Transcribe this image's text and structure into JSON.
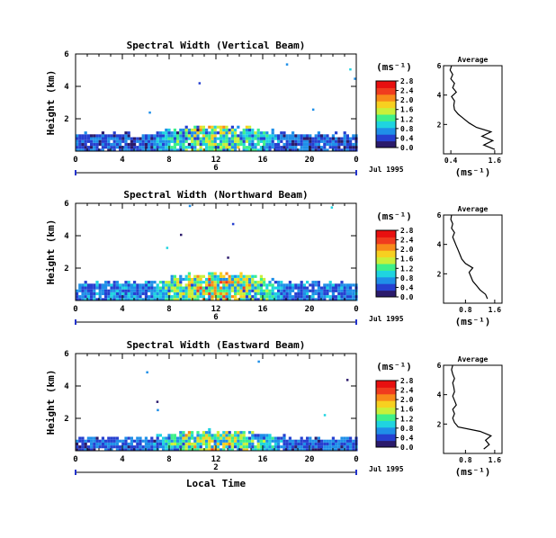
{
  "chart_data": [
    {
      "type": "heatmap",
      "title": "Spectral Width (Vertical Beam)",
      "ylabel": "Height (km)",
      "x_ticks": [
        "0",
        "4",
        "8",
        "12",
        "16",
        "20",
        "0"
      ],
      "y_ticks": [
        "6",
        "4",
        "2"
      ],
      "xlim": [
        0,
        24
      ],
      "ylim": [
        0,
        6
      ],
      "day_label": "6",
      "date_label": "Jul 1995",
      "colorbar": {
        "unit": "(ms⁻¹)",
        "ticks": [
          "2.8",
          "2.4",
          "2.0",
          "1.6",
          "1.2",
          "0.8",
          "0.4",
          "0.0"
        ],
        "range": [
          0.0,
          2.8
        ]
      },
      "echo_layers": [
        {
          "top_km": 1.5,
          "bottom_km": 0.0,
          "mean_width": 0.8
        }
      ],
      "average_profile": {
        "title": "Average",
        "xlabel": "(ms⁻¹)",
        "x_ticks": [
          "0.4",
          "1.6"
        ],
        "xlim": [
          0.2,
          1.8
        ],
        "y_ticks": [
          "6",
          "4",
          "2"
        ],
        "ylim": [
          0,
          6
        ],
        "height_km": [
          0.3,
          0.6,
          0.9,
          1.2,
          1.5,
          1.8,
          2.1,
          2.4,
          2.7,
          3.0,
          3.3,
          3.6,
          3.9,
          4.2,
          4.5,
          4.8,
          5.1,
          5.4,
          5.7,
          6.0
        ],
        "width": [
          1.6,
          1.3,
          1.55,
          1.25,
          1.5,
          1.1,
          0.9,
          0.75,
          0.6,
          0.5,
          0.48,
          0.5,
          0.42,
          0.55,
          0.45,
          0.5,
          0.4,
          0.45,
          0.38,
          0.42
        ]
      }
    },
    {
      "type": "heatmap",
      "title": "Spectral Width (Northward Beam)",
      "ylabel": "Height (km)",
      "x_ticks": [
        "0",
        "4",
        "8",
        "12",
        "16",
        "20",
        "0"
      ],
      "y_ticks": [
        "6",
        "4",
        "2"
      ],
      "xlim": [
        0,
        24
      ],
      "ylim": [
        0,
        6
      ],
      "day_label": "6",
      "date_label": "Jul 1995",
      "colorbar": {
        "unit": "(ms⁻¹)",
        "ticks": [
          "2.8",
          "2.4",
          "2.0",
          "1.6",
          "1.2",
          "0.8",
          "0.4",
          "0.0"
        ],
        "range": [
          0.0,
          2.8
        ]
      },
      "echo_layers": [
        {
          "top_km": 1.6,
          "bottom_km": 0.0,
          "mean_width": 1.0
        }
      ],
      "average_profile": {
        "title": "Average",
        "xlabel": "(ms⁻¹)",
        "x_ticks": [
          "0.8",
          "1.6"
        ],
        "xlim": [
          0.2,
          1.8
        ],
        "y_ticks": [
          "6",
          "4",
          "2"
        ],
        "ylim": [
          0,
          6
        ],
        "height_km": [
          0.3,
          0.6,
          0.9,
          1.2,
          1.5,
          1.8,
          2.1,
          2.4,
          2.7,
          3.0,
          3.3,
          3.6,
          3.9,
          4.2,
          4.5,
          4.8,
          5.1,
          5.4,
          5.7,
          6.0
        ],
        "width": [
          1.4,
          1.35,
          1.2,
          1.1,
          1.0,
          0.95,
          0.9,
          1.0,
          0.8,
          0.7,
          0.65,
          0.6,
          0.55,
          0.5,
          0.45,
          0.5,
          0.42,
          0.45,
          0.4,
          0.42
        ]
      }
    },
    {
      "type": "heatmap",
      "title": "Spectral Width (Eastward Beam)",
      "ylabel": "Height (km)",
      "x_ticks": [
        "0",
        "4",
        "8",
        "12",
        "16",
        "20",
        "0"
      ],
      "y_ticks": [
        "6",
        "4",
        "2"
      ],
      "xlim": [
        0,
        24
      ],
      "ylim": [
        0,
        6
      ],
      "day_label": "2",
      "date_label": "Jul 1995",
      "xlabel": "Local Time",
      "colorbar": {
        "unit": "(ms⁻¹)",
        "ticks": [
          "2.8",
          "2.4",
          "2.0",
          "1.6",
          "1.2",
          "0.8",
          "0.4",
          "0.0"
        ],
        "range": [
          0.0,
          2.8
        ]
      },
      "echo_layers": [
        {
          "top_km": 1.2,
          "bottom_km": 0.0,
          "mean_width": 0.9
        }
      ],
      "average_profile": {
        "title": "Average",
        "xlabel": "(ms⁻¹)",
        "x_ticks": [
          "0.8",
          "1.6"
        ],
        "xlim": [
          0.2,
          1.8
        ],
        "y_ticks": [
          "6",
          "4",
          "2"
        ],
        "ylim": [
          0,
          6
        ],
        "height_km": [
          0.3,
          0.6,
          0.9,
          1.2,
          1.5,
          1.8,
          2.1,
          2.4,
          2.7,
          3.0,
          3.3,
          3.6,
          3.9,
          4.2,
          4.5,
          4.8,
          5.1,
          5.4,
          5.7,
          6.0
        ],
        "width": [
          1.3,
          1.45,
          1.35,
          1.5,
          1.2,
          0.6,
          0.5,
          0.45,
          0.5,
          0.45,
          0.55,
          0.5,
          0.45,
          0.5,
          0.48,
          0.45,
          0.5,
          0.45,
          0.42,
          0.45
        ]
      }
    }
  ],
  "colorscale": [
    "#2b1a6b",
    "#2640d0",
    "#1f8fe8",
    "#1fd4e0",
    "#3ef08a",
    "#c8f03a",
    "#f7d020",
    "#f88a1a",
    "#f03c1e",
    "#e81010"
  ]
}
